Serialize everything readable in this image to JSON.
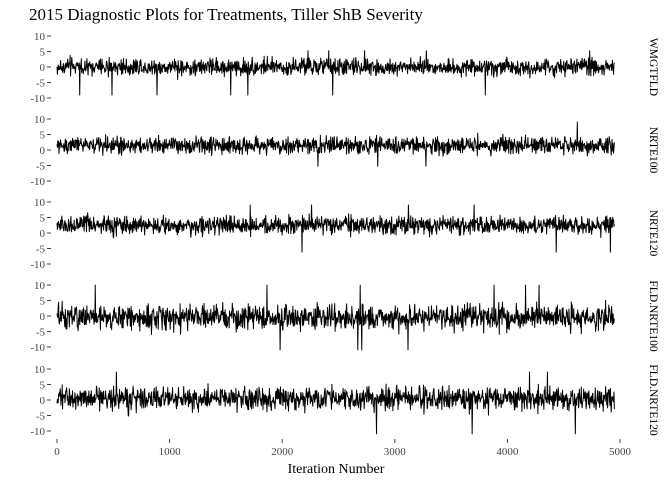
{
  "chart_data": {
    "type": "line",
    "title": "2015 Diagnostic Plots for Treatments, Tiller ShB Severity",
    "xlabel": "Iteration Number",
    "ylabel": "",
    "xlim": [
      0,
      5000
    ],
    "ylim": [
      -10,
      10
    ],
    "x_ticks": [
      "0",
      "1000",
      "2000",
      "3000",
      "4000",
      "5000"
    ],
    "y_ticks": [
      "10",
      "5",
      "0",
      "-5",
      "-10"
    ],
    "iterations": 4950,
    "grid": false,
    "legend": "none",
    "line_color": "#000000",
    "panels": [
      {
        "name": "WMGTFLD",
        "center": 0,
        "range": [
          -9.5,
          5.5
        ]
      },
      {
        "name": "NRTE100",
        "center": 1.5,
        "range": [
          -5.5,
          9.5
        ]
      },
      {
        "name": "NRTE120",
        "center": 2.5,
        "range": [
          -6.5,
          9.5
        ]
      },
      {
        "name": "FLD.NRTE100",
        "center": -0.5,
        "range": [
          -11.5,
          10.5
        ]
      },
      {
        "name": "FLD.NRTE120",
        "center": 0.5,
        "range": [
          -11.5,
          9.5
        ]
      }
    ]
  }
}
